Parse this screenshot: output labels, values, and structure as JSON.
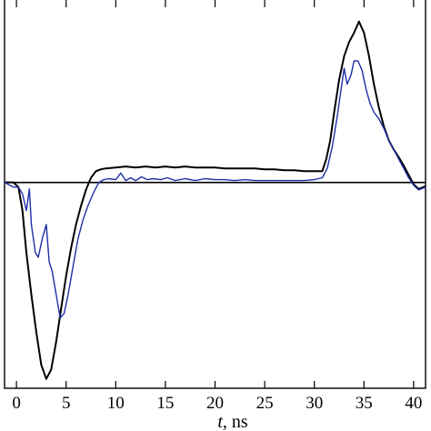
{
  "chart_data": {
    "type": "line",
    "xlabel_var": "t",
    "xlabel_unit": ", ns",
    "xlim": [
      -1.2,
      41.2
    ],
    "ylim": [
      -2.2,
      1.95
    ],
    "x_ticks": [
      0,
      5,
      10,
      15,
      20,
      25,
      30,
      35,
      40
    ],
    "x_tick_labels": [
      "0",
      "5",
      "10",
      "15",
      "20",
      "25",
      "30",
      "35",
      "40"
    ],
    "reference_line_y": 0,
    "series": [
      {
        "color": "#000000",
        "points": [
          [
            -1.2,
            0.0
          ],
          [
            -0.3,
            0.0
          ],
          [
            0.2,
            -0.05
          ],
          [
            0.6,
            -0.3
          ],
          [
            1.0,
            -0.75
          ],
          [
            1.5,
            -1.2
          ],
          [
            2.0,
            -1.6
          ],
          [
            2.5,
            -1.95
          ],
          [
            3.0,
            -2.1
          ],
          [
            3.5,
            -2.0
          ],
          [
            4.0,
            -1.7
          ],
          [
            4.5,
            -1.35
          ],
          [
            5.0,
            -1.0
          ],
          [
            5.5,
            -0.7
          ],
          [
            6.0,
            -0.45
          ],
          [
            6.5,
            -0.25
          ],
          [
            7.0,
            -0.08
          ],
          [
            7.5,
            0.05
          ],
          [
            8.0,
            0.12
          ],
          [
            8.5,
            0.14
          ],
          [
            9.0,
            0.15
          ],
          [
            10.0,
            0.16
          ],
          [
            11.0,
            0.17
          ],
          [
            12.0,
            0.16
          ],
          [
            13.0,
            0.17
          ],
          [
            14.0,
            0.16
          ],
          [
            15.0,
            0.17
          ],
          [
            16.0,
            0.16
          ],
          [
            17.0,
            0.17
          ],
          [
            18.0,
            0.16
          ],
          [
            19.0,
            0.16
          ],
          [
            20.0,
            0.16
          ],
          [
            21.0,
            0.15
          ],
          [
            22.0,
            0.15
          ],
          [
            23.0,
            0.15
          ],
          [
            24.0,
            0.15
          ],
          [
            25.0,
            0.14
          ],
          [
            26.0,
            0.14
          ],
          [
            27.0,
            0.13
          ],
          [
            28.0,
            0.13
          ],
          [
            29.0,
            0.12
          ],
          [
            30.0,
            0.12
          ],
          [
            30.8,
            0.12
          ],
          [
            31.2,
            0.25
          ],
          [
            31.6,
            0.45
          ],
          [
            32.0,
            0.75
          ],
          [
            32.5,
            1.1
          ],
          [
            33.0,
            1.35
          ],
          [
            33.5,
            1.5
          ],
          [
            34.0,
            1.6
          ],
          [
            34.5,
            1.72
          ],
          [
            35.0,
            1.6
          ],
          [
            35.5,
            1.35
          ],
          [
            36.0,
            1.05
          ],
          [
            36.5,
            0.8
          ],
          [
            37.0,
            0.6
          ],
          [
            37.5,
            0.45
          ],
          [
            38.0,
            0.35
          ],
          [
            38.5,
            0.27
          ],
          [
            39.0,
            0.18
          ],
          [
            39.5,
            0.08
          ],
          [
            40.0,
            -0.02
          ],
          [
            40.5,
            -0.07
          ],
          [
            41.2,
            -0.04
          ]
        ]
      },
      {
        "color": "#1f2fa8",
        "points": [
          [
            -1.2,
            0.0
          ],
          [
            -0.3,
            -0.05
          ],
          [
            0.2,
            -0.05
          ],
          [
            0.6,
            -0.12
          ],
          [
            1.0,
            -0.3
          ],
          [
            1.3,
            -0.07
          ],
          [
            1.5,
            -0.45
          ],
          [
            1.9,
            -0.75
          ],
          [
            2.2,
            -0.8
          ],
          [
            2.6,
            -0.6
          ],
          [
            3.0,
            -0.45
          ],
          [
            3.3,
            -0.85
          ],
          [
            3.6,
            -0.95
          ],
          [
            4.0,
            -1.2
          ],
          [
            4.4,
            -1.45
          ],
          [
            4.8,
            -1.4
          ],
          [
            5.2,
            -1.2
          ],
          [
            5.7,
            -0.9
          ],
          [
            6.2,
            -0.6
          ],
          [
            6.7,
            -0.4
          ],
          [
            7.2,
            -0.25
          ],
          [
            7.8,
            -0.1
          ],
          [
            8.3,
            0.0
          ],
          [
            8.8,
            0.03
          ],
          [
            9.3,
            0.04
          ],
          [
            10.0,
            0.03
          ],
          [
            10.5,
            0.1
          ],
          [
            11.0,
            0.02
          ],
          [
            11.5,
            0.05
          ],
          [
            12.0,
            0.02
          ],
          [
            12.6,
            0.06
          ],
          [
            13.2,
            0.03
          ],
          [
            13.8,
            0.04
          ],
          [
            14.5,
            0.03
          ],
          [
            15.2,
            0.05
          ],
          [
            16.0,
            0.02
          ],
          [
            17.0,
            0.04
          ],
          [
            18.0,
            0.02
          ],
          [
            19.0,
            0.04
          ],
          [
            20.0,
            0.03
          ],
          [
            21.0,
            0.03
          ],
          [
            22.0,
            0.02
          ],
          [
            23.0,
            0.03
          ],
          [
            24.0,
            0.02
          ],
          [
            25.0,
            0.02
          ],
          [
            26.0,
            0.02
          ],
          [
            27.0,
            0.02
          ],
          [
            28.0,
            0.02
          ],
          [
            29.0,
            0.02
          ],
          [
            30.0,
            0.03
          ],
          [
            30.8,
            0.05
          ],
          [
            31.3,
            0.15
          ],
          [
            31.8,
            0.38
          ],
          [
            32.3,
            0.7
          ],
          [
            32.7,
            1.0
          ],
          [
            33.0,
            1.22
          ],
          [
            33.3,
            1.05
          ],
          [
            33.7,
            1.15
          ],
          [
            34.0,
            1.3
          ],
          [
            34.4,
            1.3
          ],
          [
            34.8,
            1.2
          ],
          [
            35.2,
            1.0
          ],
          [
            35.6,
            0.85
          ],
          [
            36.0,
            0.75
          ],
          [
            36.5,
            0.68
          ],
          [
            37.0,
            0.58
          ],
          [
            37.5,
            0.45
          ],
          [
            38.0,
            0.35
          ],
          [
            38.5,
            0.25
          ],
          [
            39.0,
            0.15
          ],
          [
            39.5,
            0.05
          ],
          [
            40.0,
            -0.03
          ],
          [
            40.5,
            -0.08
          ],
          [
            41.2,
            -0.05
          ]
        ]
      }
    ]
  }
}
